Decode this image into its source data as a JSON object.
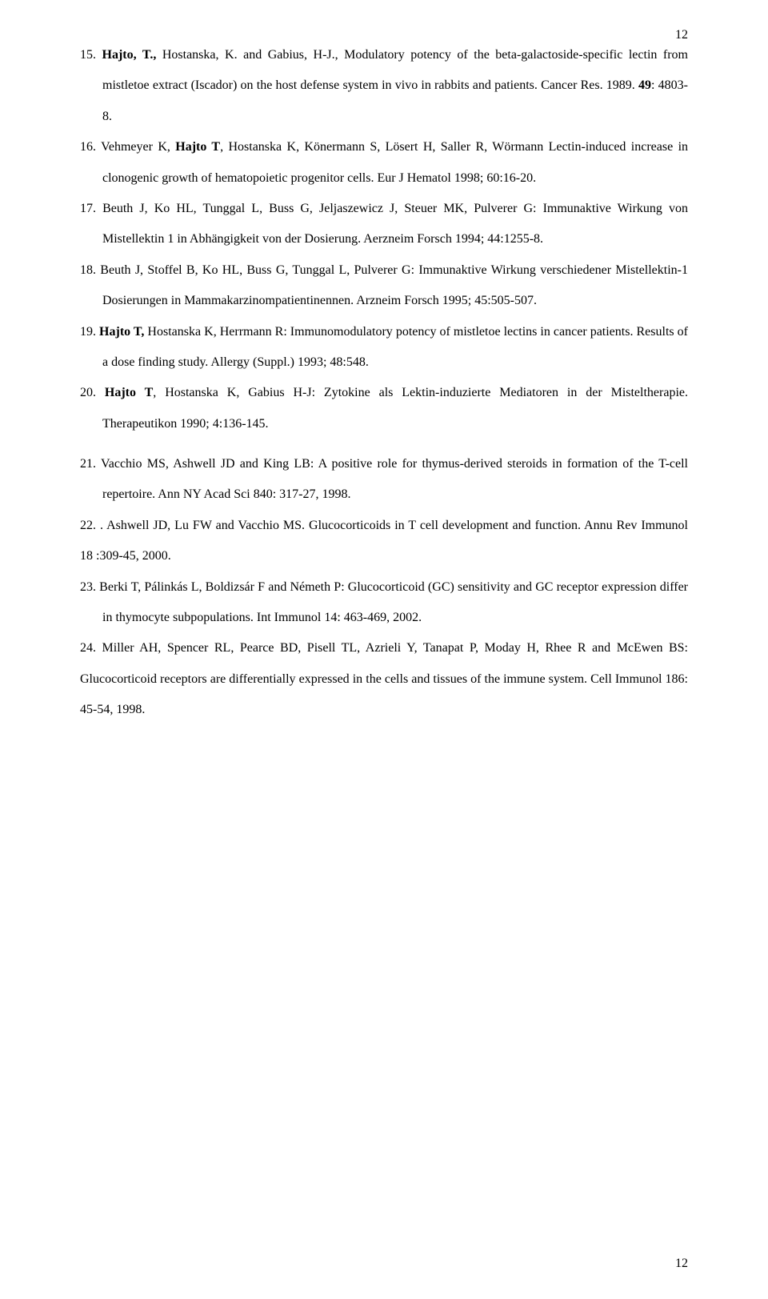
{
  "page": {
    "top_num": "12",
    "bottom_num": "12"
  },
  "refs": {
    "r15_a": "15. ",
    "r15_b": "Hajto, T., ",
    "r15_c": " Hostanska, K. and Gabius, H-J., Modulatory potency of the beta-galactoside-specific lectin from mistletoe extract (Iscador) on the host defense system in vivo in rabbits and patients. Cancer Res. 1989. ",
    "r15_d": "49",
    "r15_e": ": 4803-8.",
    "r16_a": "16. Vehmeyer K, ",
    "r16_b": "Hajto T",
    "r16_c": ", Hostanska K, Könermann S, Lösert H, Saller R, Wörmann Lectin-induced increase in clonogenic growth of hematopoietic progenitor cells. Eur J Hematol 1998; 60:16-20.",
    "r17": "17. Beuth J, Ko HL, Tunggal L, Buss G, Jeljaszewicz J, Steuer MK, Pulverer G: Immunaktive Wirkung von Mistellektin 1 in Abhängigkeit von der Dosierung. Aerzneim Forsch 1994; 44:1255-8.",
    "r18": "18. Beuth J, Stoffel B, Ko HL, Buss G, Tunggal L, Pulverer G: Immunaktive Wirkung verschiedener Mistellektin-1 Dosierungen in Mammakarzinompatientinennen. Arzneim Forsch 1995; 45:505-507.",
    "r19_a": "19. ",
    "r19_b": "Hajto T,",
    "r19_c": " Hostanska K, Herrmann R: Immunomodulatory potency of mistletoe lectins in cancer patients. Results of a dose finding study. Allergy (Suppl.) 1993; 48:548.",
    "r20_a": "20. ",
    "r20_b": "Hajto T",
    "r20_c": ", Hostanska K, Gabius H-J: Zytokine als Lektin-induzierte Mediatoren in der Misteltherapie. Therapeutikon 1990; 4:136-145.",
    "r21": "21. Vacchio MS, Ashwell JD and King LB: A positive role for thymus-derived steroids in formation of the T-cell repertoire. Ann NY Acad Sci 840: 317-27, 1998.",
    "r22": "22. . Ashwell JD, Lu FW and Vacchio MS. Glucocorticoids in T cell development and function. Annu Rev Immunol  18 :309-45, 2000.",
    "r23": "23. Berki T, Pálinkás L, Boldizsár F and Németh P: Glucocorticoid (GC) sensitivity and GC receptor expression differ in thymocyte subpopulations. Int Immunol 14: 463-469, 2002.",
    "r24": "24. Miller AH, Spencer RL, Pearce BD, Pisell TL, Azrieli Y, Tanapat P, Moday H, Rhee R and    McEwen BS: Glucocorticoid receptors are differentially expressed in the cells and tissues of  the immune system. Cell Immunol 186: 45-54, 1998."
  }
}
